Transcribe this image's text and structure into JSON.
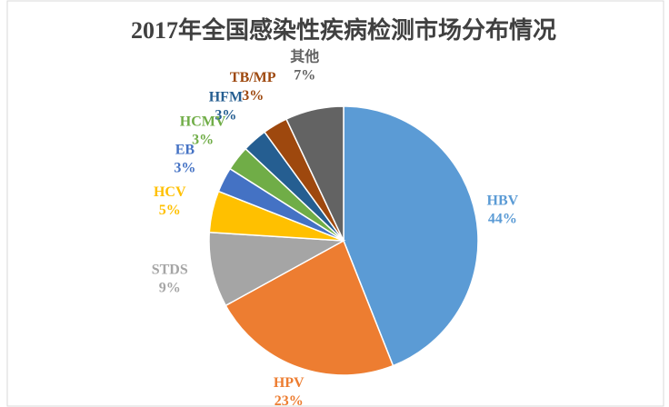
{
  "chart_data": {
    "type": "pie",
    "title": "2017年全国感染性疾病检测市场分布情况",
    "categories": [
      "HBV",
      "HPV",
      "STDS",
      "HCV",
      "EB",
      "HCMV",
      "HFM",
      "TB/MP",
      "其他"
    ],
    "values": [
      44,
      23,
      9,
      5,
      3,
      3,
      3,
      3,
      7
    ],
    "value_labels": [
      "44%",
      "23%",
      "9%",
      "5%",
      "3%",
      "3%",
      "3%",
      "3%",
      "7%"
    ],
    "colors": [
      "#5b9bd5",
      "#ed7d31",
      "#a5a5a5",
      "#ffc000",
      "#4472c4",
      "#70ad47",
      "#255e91",
      "#9e480e",
      "#636363"
    ]
  }
}
